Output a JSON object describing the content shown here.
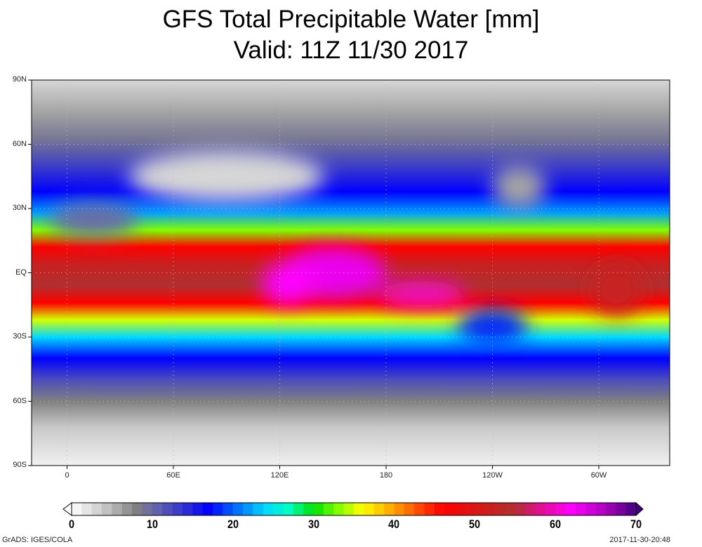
{
  "title": {
    "line1": "GFS Total Precipitable Water [mm]",
    "line2": "Valid: 11Z 11/30 2017"
  },
  "map": {
    "lat_labels": [
      "90N",
      "60N",
      "30N",
      "EQ",
      "30S",
      "60S",
      "90S"
    ],
    "lat_values": [
      90,
      60,
      30,
      0,
      -30,
      -60,
      -90
    ],
    "lon_labels": [
      "0",
      "60E",
      "120E",
      "180",
      "120W",
      "60W"
    ],
    "lon_values": [
      0,
      60,
      120,
      180,
      240,
      300
    ],
    "lon_range": [
      -20,
      340
    ],
    "lat_range": [
      -90,
      90
    ],
    "zonal_profile": [
      {
        "lat": 90,
        "value": 3
      },
      {
        "lat": 75,
        "value": 6
      },
      {
        "lat": 62,
        "value": 9
      },
      {
        "lat": 50,
        "value": 13
      },
      {
        "lat": 38,
        "value": 17
      },
      {
        "lat": 28,
        "value": 22
      },
      {
        "lat": 20,
        "value": 33
      },
      {
        "lat": 12,
        "value": 46
      },
      {
        "lat": 4,
        "value": 52
      },
      {
        "lat": -6,
        "value": 55
      },
      {
        "lat": -14,
        "value": 46
      },
      {
        "lat": -22,
        "value": 35
      },
      {
        "lat": -30,
        "value": 24
      },
      {
        "lat": -40,
        "value": 17
      },
      {
        "lat": -50,
        "value": 12
      },
      {
        "lat": -60,
        "value": 8
      },
      {
        "lat": -72,
        "value": 4
      },
      {
        "lat": -90,
        "value": 1
      }
    ],
    "features": [
      {
        "lon": 150,
        "lat": 0,
        "rlon": 30,
        "rlat": 12,
        "value": 63
      },
      {
        "lon": 125,
        "lat": -5,
        "rlon": 15,
        "rlat": 10,
        "value": 62
      },
      {
        "lon": 200,
        "lat": -10,
        "rlon": 25,
        "rlat": 6,
        "value": 60
      },
      {
        "lon": 90,
        "lat": 45,
        "rlon": 55,
        "rlat": 12,
        "value": 3
      },
      {
        "lon": 15,
        "lat": 25,
        "rlon": 25,
        "rlat": 8,
        "value": 10
      },
      {
        "lon": 255,
        "lat": 40,
        "rlon": 15,
        "rlat": 10,
        "value": 6
      },
      {
        "lon": 310,
        "lat": -8,
        "rlon": 15,
        "rlat": 12,
        "value": 52
      },
      {
        "lon": 240,
        "lat": -25,
        "rlon": 20,
        "rlat": 8,
        "value": 18
      }
    ]
  },
  "colorbar": {
    "min": 0,
    "max": 70,
    "segments": 56,
    "labels": [
      "0",
      "10",
      "20",
      "30",
      "40",
      "50",
      "60",
      "70"
    ],
    "label_values": [
      0,
      10,
      20,
      30,
      40,
      50,
      60,
      70
    ],
    "stops": [
      [
        0,
        "#ffffff"
      ],
      [
        4,
        "#c8c8c8"
      ],
      [
        8,
        "#808080"
      ],
      [
        10,
        "#6a6aa8"
      ],
      [
        14,
        "#3030d0"
      ],
      [
        17,
        "#0000ff"
      ],
      [
        20,
        "#0060ff"
      ],
      [
        24,
        "#00d8ff"
      ],
      [
        27,
        "#00ffc0"
      ],
      [
        30,
        "#00e000"
      ],
      [
        33,
        "#80ff00"
      ],
      [
        36,
        "#ffff00"
      ],
      [
        40,
        "#ffa000"
      ],
      [
        44,
        "#ff3000"
      ],
      [
        46,
        "#ff0000"
      ],
      [
        52,
        "#c82020"
      ],
      [
        55,
        "#b03030"
      ],
      [
        58,
        "#e01090"
      ],
      [
        62,
        "#ff00ff"
      ],
      [
        66,
        "#b000c0"
      ],
      [
        70,
        "#400080"
      ]
    ]
  },
  "footer": {
    "left": "GrADS: IGES/COLA",
    "right": "2017-11-30-20:48"
  }
}
